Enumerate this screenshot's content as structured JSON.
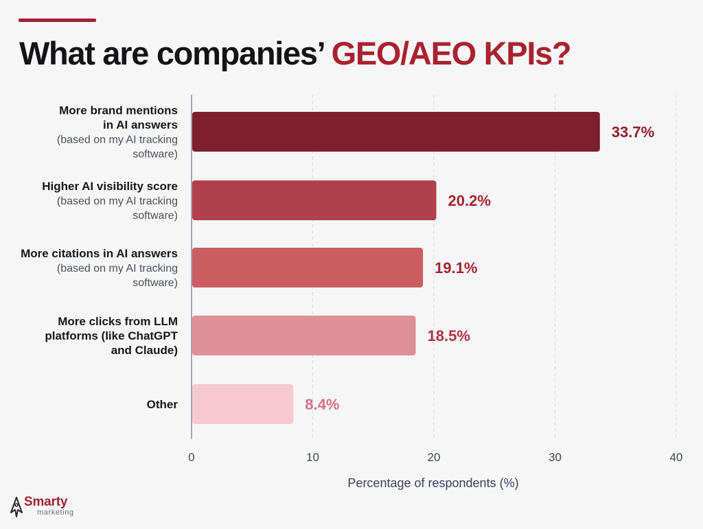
{
  "title": {
    "part1": "What are companies’ ",
    "part2": "GEO/AEO KPIs?"
  },
  "colors": {
    "accent": "#9e2330",
    "title_dark": "#141416",
    "title_accent": "#a8222f",
    "gridline": "#d9d9df",
    "axis": "#8a93a8"
  },
  "chart_data": {
    "type": "bar",
    "orientation": "horizontal",
    "categories": [
      "More brand mentions in AI answers (based on my AI tracking software)",
      "Higher AI visibility score (based on my AI tracking software)",
      "More citations in AI answers (based on my AI tracking software)",
      "More clicks from LLM platforms (like ChatGPT and Claude)",
      "Other"
    ],
    "category_lines": [
      [
        {
          "t": "More brand mentions",
          "bold": true
        },
        {
          "t": "in AI answers",
          "bold": true
        },
        {
          "t": "(based on my AI tracking",
          "bold": false
        },
        {
          "t": "software)",
          "bold": false
        }
      ],
      [
        {
          "t": "Higher AI visibility score",
          "bold": true
        },
        {
          "t": "(based on my AI tracking",
          "bold": false
        },
        {
          "t": "software)",
          "bold": false
        }
      ],
      [
        {
          "t": "More citations in AI answers",
          "bold": true
        },
        {
          "t": "(based on my AI tracking",
          "bold": false
        },
        {
          "t": "software)",
          "bold": false
        }
      ],
      [
        {
          "t": "More clicks from LLM",
          "bold": true
        },
        {
          "t": "platforms (like ChatGPT",
          "bold": true
        },
        {
          "t": "and Claude)",
          "bold": true
        }
      ],
      [
        {
          "t": "Other",
          "bold": true
        }
      ]
    ],
    "values": [
      33.7,
      20.2,
      19.1,
      18.5,
      8.4
    ],
    "value_labels": [
      "33.7%",
      "20.2%",
      "19.1%",
      "18.5%",
      "8.4%"
    ],
    "bar_colors": [
      "#7d1f2c",
      "#b0404b",
      "#cc5e63",
      "#df8f98",
      "#f5c9cf"
    ],
    "label_colors": [
      "#8c1f2b",
      "#a3232f",
      "#a3232f",
      "#b0343f",
      "#d67282"
    ],
    "xlabel": "Percentage of respondents (%)",
    "ylabel": "",
    "xlim": [
      0,
      40
    ],
    "xticks": [
      0,
      10,
      20,
      30,
      40
    ],
    "xtick_labels": [
      "0",
      "10",
      "20",
      "30",
      "40"
    ],
    "grid": true
  },
  "logo": {
    "word": "Smarty",
    "sub": "marketing",
    "icon": "rocket-outline-icon"
  }
}
